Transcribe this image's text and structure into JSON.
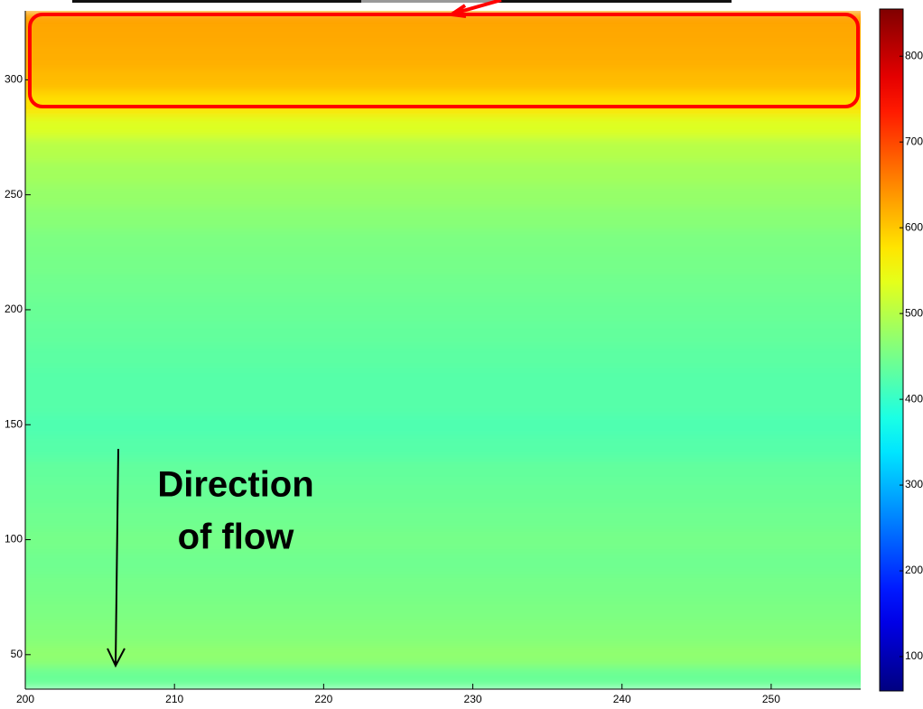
{
  "chart_data": {
    "type": "heatmap",
    "xlim": [
      200,
      256
    ],
    "xticks": [
      200,
      210,
      220,
      230,
      240,
      250
    ],
    "ylim": [
      35,
      330
    ],
    "yticks": [
      50,
      100,
      150,
      200,
      250,
      300
    ],
    "ybins": [
      35,
      45,
      55,
      65,
      75,
      85,
      95,
      105,
      115,
      125,
      135,
      145,
      155,
      165,
      175,
      185,
      195,
      205,
      215,
      225,
      235,
      245,
      255,
      265,
      275,
      285,
      295,
      305,
      315,
      325,
      330
    ],
    "values": [
      440,
      470,
      460,
      455,
      450,
      445,
      450,
      445,
      440,
      435,
      425,
      420,
      425,
      425,
      430,
      435,
      440,
      445,
      450,
      455,
      465,
      475,
      485,
      500,
      530,
      580,
      610,
      620,
      625,
      630
    ],
    "colormap": "jet",
    "clim": [
      60,
      855
    ],
    "colorbar_ticks": [
      100,
      200,
      300,
      400,
      500,
      600,
      700,
      800
    ],
    "annotations": [
      "Direction",
      "of flow"
    ]
  }
}
